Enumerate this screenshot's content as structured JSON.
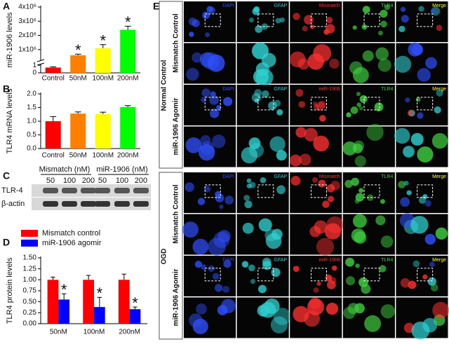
{
  "chart_data": [
    {
      "type": "bar",
      "panel_label": "A",
      "y_label": "miR-1906 levels",
      "categories": [
        "Control",
        "50nM",
        "100nM",
        "200nM"
      ],
      "values": [
        0.7,
        600000,
        1100000,
        2400000
      ],
      "errors": [
        0.1,
        80000,
        250000,
        250000
      ],
      "colors": [
        "#ff0000",
        "#ff8000",
        "#ffff00",
        "#00ff00"
      ],
      "significance": [
        null,
        "*",
        "*",
        "*"
      ],
      "ylim": [
        0,
        4000000
      ],
      "y_break": [
        1.2,
        200000
      ],
      "yticks": [
        0,
        1,
        {
          "value": 1000000,
          "label": "1x10⁶"
        },
        {
          "value": 2000000,
          "label": "2x10⁶"
        },
        {
          "value": 3000000,
          "label": "3x10⁶"
        },
        {
          "value": 4000000,
          "label": "4x10⁶"
        }
      ]
    },
    {
      "type": "bar",
      "panel_label": "B",
      "y_label": "TLR4 mRNA levels",
      "categories": [
        "Control",
        "50nM",
        "100nM",
        "200nM"
      ],
      "values": [
        1.0,
        1.28,
        1.26,
        1.52
      ],
      "errors": [
        0.17,
        0.06,
        0.07,
        0.05
      ],
      "colors": [
        "#ff0000",
        "#ff8000",
        "#ffff00",
        "#00ff00"
      ],
      "ylim": [
        0,
        2
      ],
      "yticks": [
        {
          "value": 0,
          "label": "0.0"
        },
        0.5,
        {
          "value": 1,
          "label": "1.0"
        },
        1.5,
        {
          "value": 2,
          "label": "2.0"
        }
      ]
    },
    {
      "type": "bar",
      "panel_label": "D",
      "y_label": "TLR4 protein levels",
      "categories": [
        "50nM",
        "100nM",
        "200nM"
      ],
      "series": [
        {
          "name": "Mismatch control",
          "color": "#ff0000",
          "values": [
            1.0,
            1.0,
            1.0
          ],
          "errors": [
            0.06,
            0.1,
            0.13
          ]
        },
        {
          "name": "miR-1906 agomir",
          "color": "#0000ff",
          "values": [
            0.55,
            0.38,
            0.33
          ],
          "errors": [
            0.13,
            0.22,
            0.05
          ],
          "significance": [
            "*",
            "*",
            "*"
          ]
        }
      ],
      "ylim": [
        0,
        1.5
      ],
      "yticks": [
        {
          "value": 0,
          "label": "0.00"
        },
        0.25,
        {
          "value": 0.5,
          "label": "0.50"
        },
        0.75,
        {
          "value": 1,
          "label": "1.00"
        },
        1.25,
        {
          "value": 1.5,
          "label": "1.50"
        }
      ],
      "legend": "top-left"
    }
  ],
  "panel_c": {
    "label": "C",
    "groups": [
      {
        "name": "Mismatch (nM)",
        "lanes": [
          "50",
          "100",
          "200"
        ]
      },
      {
        "name": "miR-1906 (nM)",
        "lanes": [
          "50",
          "100",
          "200"
        ]
      }
    ],
    "proteins": [
      "TLR-4",
      "β-actin"
    ]
  },
  "panel_e": {
    "label": "E",
    "groups": [
      {
        "name": "Normal Control",
        "rows": [
          {
            "name": "Mismatch Control",
            "channels": [
              "DAPI",
              "GFAP",
              "Mismatch",
              "TLR4",
              "Merge"
            ]
          },
          {
            "name": "miR-1906 Agomir",
            "channels": [
              "DAPI",
              "GFAP",
              "miR-1906",
              "TLR4",
              "Merge"
            ]
          }
        ]
      },
      {
        "name": "OGD",
        "rows": [
          {
            "name": "Mismatch Control",
            "channels": [
              "DAPI",
              "GFAP",
              "Mismatch",
              "TLR4",
              "Merge"
            ]
          },
          {
            "name": "miR-1906 Agomir",
            "channels": [
              "DAPI",
              "GFAP",
              "miR-1906",
              "TLR4",
              "Merge"
            ]
          }
        ]
      }
    ]
  }
}
